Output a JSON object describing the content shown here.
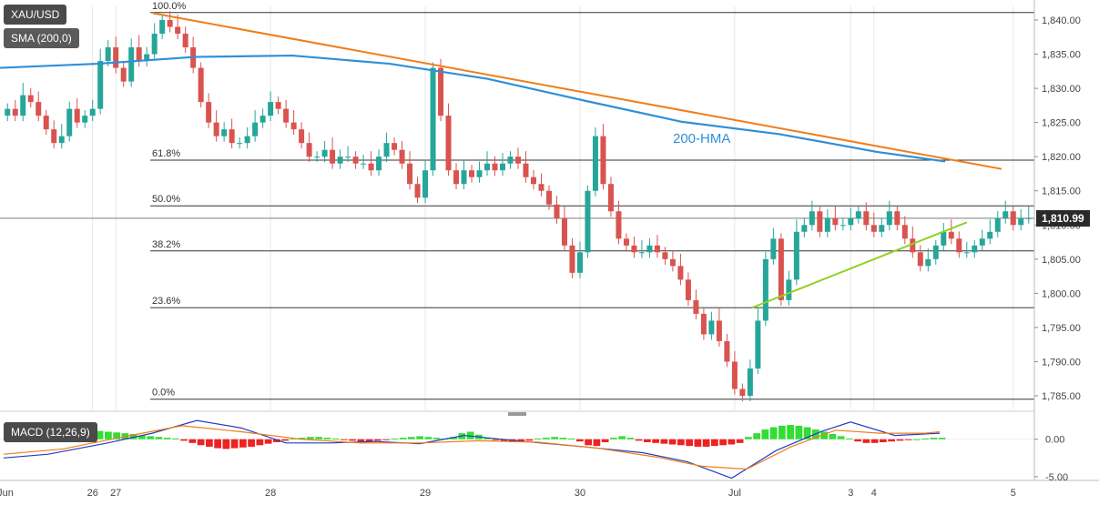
{
  "symbol": "XAU/USD",
  "indicator_label": "SMA (200,0)",
  "macd_label": "MACD (12,26,9)",
  "hma_label": "200-HMA",
  "current_price": 1810.99,
  "current_price_label": "1,810.99",
  "colors": {
    "bull": "#26a69a",
    "bear": "#d9534f",
    "hma": "#2f8fd8",
    "trend_down": "#f07d1a",
    "trend_up": "#8fd21f",
    "macd_line": "#1f3fbf",
    "signal_line": "#f07d1a",
    "hist_pos": "#33dd33",
    "hist_neg": "#ee2222"
  },
  "chart_data": [
    {
      "type": "candlestick",
      "title": "XAU/USD",
      "ylim": [
        1783,
        1842
      ],
      "y_ticks": [
        "1,785.00",
        "1,790.00",
        "1,795.00",
        "1,800.00",
        "1,805.00",
        "1,810.00",
        "1,815.00",
        "1,820.00",
        "1,825.00",
        "1,830.00",
        "1,835.00",
        "1,840.00"
      ],
      "x_ticks": [
        "Jun",
        "26",
        "27",
        "28",
        "29",
        "30",
        "Jul",
        "3",
        "4",
        "5"
      ],
      "fib_levels": [
        {
          "label": "100.0%",
          "value": 1841.1
        },
        {
          "label": "61.8%",
          "value": 1819.5
        },
        {
          "label": "50.0%",
          "value": 1812.8
        },
        {
          "label": "38.2%",
          "value": 1806.2
        },
        {
          "label": "23.6%",
          "value": 1797.9
        },
        {
          "label": "0.0%",
          "value": 1784.5
        }
      ],
      "close": [
        1827,
        1826,
        1829,
        1828,
        1826,
        1824,
        1822,
        1823,
        1827,
        1825,
        1826,
        1827,
        1834,
        1836,
        1833,
        1831,
        1836,
        1834,
        1835,
        1838,
        1840,
        1839,
        1838,
        1836,
        1833,
        1828,
        1825,
        1823,
        1824,
        1822,
        1822,
        1823,
        1825,
        1826,
        1828,
        1827,
        1825,
        1824,
        1822,
        1820,
        1820,
        1821,
        1819,
        1820,
        1820,
        1819,
        1819,
        1818,
        1820,
        1822,
        1821,
        1819,
        1816,
        1814,
        1818,
        1833,
        1826,
        1818,
        1816,
        1818,
        1817,
        1818,
        1819,
        1818,
        1819,
        1820,
        1819,
        1817,
        1816,
        1815,
        1813,
        1811,
        1807,
        1803,
        1806,
        1815,
        1823,
        1816,
        1812,
        1808,
        1807,
        1806,
        1806,
        1807,
        1806,
        1805,
        1804,
        1802,
        1799,
        1797,
        1794,
        1796,
        1793,
        1790,
        1786,
        1785,
        1789,
        1796,
        1805,
        1808,
        1799,
        1802,
        1809,
        1810,
        1812,
        1809,
        1811,
        1810,
        1810,
        1811,
        1812,
        1810,
        1809,
        1810,
        1812,
        1810,
        1808,
        1806,
        1804,
        1805,
        1807,
        1809,
        1808,
        1806,
        1806,
        1807,
        1808,
        1809,
        1811,
        1812,
        1810,
        1811,
        1811
      ],
      "hma": {
        "x": [
          0,
          10,
          20,
          30,
          40,
          50,
          60,
          70,
          80,
          90,
          97
        ],
        "y": [
          1833,
          1833.6,
          1834.6,
          1834.8,
          1833.6,
          1831.4,
          1828.2,
          1825.1,
          1823.3,
          1820.7,
          1819.3
        ]
      },
      "trendline_down": {
        "x_index": [
          22,
          150
        ],
        "y": [
          1841,
          1818.2
        ]
      },
      "trendline_up": {
        "x_index": [
          113,
          144
        ],
        "y": [
          1797.9,
          1810.4
        ]
      }
    },
    {
      "type": "bar+line",
      "title": "MACD (12,26,9)",
      "ylim": [
        -5.5,
        3
      ],
      "y_ticks": [
        "0.00",
        "-5.00"
      ],
      "histogram": [
        0.5,
        0.6,
        0.7,
        0.6,
        0.8,
        0.7,
        0.6,
        0.7,
        0.8,
        0.9,
        1.0,
        1.1,
        1.0,
        0.9,
        0.8,
        0.7,
        0.5,
        0.4,
        0.3,
        0.2,
        0.1,
        -0.2,
        -0.5,
        -0.8,
        -1.0,
        -1.2,
        -1.3,
        -1.2,
        -1.1,
        -1.0,
        -0.8,
        -0.6,
        -0.4,
        -0.2,
        0.1,
        0.2,
        0.3,
        0.3,
        0.2,
        0.1,
        -0.1,
        -0.2,
        -0.3,
        -0.3,
        -0.2,
        -0.1,
        0.1,
        0.2,
        0.3,
        0.4,
        0.3,
        0.2,
        0.1,
        0.3,
        0.8,
        1.0,
        0.6,
        0.2,
        -0.1,
        -0.3,
        -0.4,
        -0.3,
        -0.2,
        0.1,
        0.2,
        0.3,
        0.2,
        0.1,
        -0.3,
        -0.8,
        -0.9,
        -0.4,
        0.2,
        0.4,
        0.2,
        -0.2,
        -0.4,
        -0.5,
        -0.6,
        -0.7,
        -0.8,
        -0.9,
        -1.0,
        -1.0,
        -0.9,
        -0.8,
        -0.7,
        -0.5,
        0.3,
        0.8,
        1.3,
        1.6,
        1.8,
        1.9,
        1.8,
        1.6,
        1.3,
        1.0,
        0.7,
        0.4,
        0.1,
        -0.3,
        -0.5,
        -0.5,
        -0.4,
        -0.3,
        -0.2,
        -0.1,
        0.0,
        0.1,
        0.2,
        0.2
      ],
      "macd_line": {
        "x": [
          0,
          6,
          14,
          20,
          26,
          32,
          38,
          44,
          50,
          56,
          62,
          70,
          78,
          86,
          92,
          98,
          104,
          110,
          114,
          120,
          126
        ],
        "y": [
          -2.5,
          -2.0,
          -0.5,
          0.8,
          2.5,
          1.5,
          -0.5,
          -0.5,
          -0.3,
          -0.6,
          0.5,
          -0.3,
          -1.0,
          -1.8,
          -3.0,
          -5.2,
          -1.5,
          1.0,
          2.3,
          0.5,
          0.8
        ]
      },
      "signal_line": {
        "x": [
          0,
          8,
          16,
          24,
          32,
          40,
          48,
          56,
          64,
          72,
          80,
          88,
          94,
          100,
          106,
          112,
          118,
          124,
          126
        ],
        "y": [
          -2.0,
          -1.3,
          0.3,
          1.8,
          1.0,
          0.0,
          -0.5,
          -0.5,
          -0.2,
          -0.4,
          -1.2,
          -2.4,
          -3.6,
          -4.0,
          -1.0,
          1.2,
          0.8,
          0.8,
          1.0
        ]
      }
    }
  ]
}
